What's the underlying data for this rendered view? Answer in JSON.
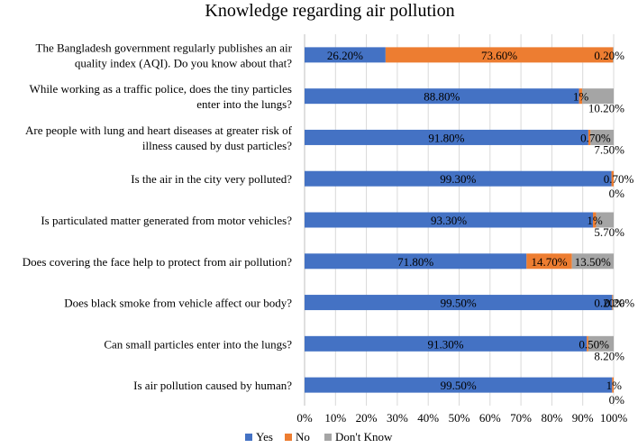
{
  "chart_data": {
    "type": "bar",
    "stacked": true,
    "orientation": "horizontal",
    "title": "Knowledge regarding air pollution",
    "xlim": [
      0,
      100
    ],
    "xticks": [
      "0%",
      "10%",
      "20%",
      "30%",
      "40%",
      "50%",
      "60%",
      "70%",
      "80%",
      "90%",
      "100%"
    ],
    "legend_position": "bottom",
    "categories": [
      {
        "lines": [
          "The Bangladesh government regularly publishes an air",
          "quality index (AQI). Do you know about that?"
        ]
      },
      {
        "lines": [
          "While working as a traffic police, does the tiny particles",
          "enter into the lungs?"
        ]
      },
      {
        "lines": [
          "Are people with lung and heart diseases at greater risk of",
          "illness caused by dust particles?"
        ]
      },
      {
        "lines": [
          "Is the air in the city very polluted?"
        ]
      },
      {
        "lines": [
          "Is particulated matter generated from motor vehicles?"
        ]
      },
      {
        "lines": [
          "Does covering the face help to protect from air pollution?"
        ]
      },
      {
        "lines": [
          "Does black smoke from vehicle affect our body?"
        ]
      },
      {
        "lines": [
          "Can small particles enter into the lungs?"
        ]
      },
      {
        "lines": [
          "Is air pollution caused by human?"
        ]
      }
    ],
    "series": [
      {
        "name": "Yes",
        "color": "#4472C4",
        "values": [
          26.2,
          88.8,
          91.8,
          99.3,
          93.3,
          71.8,
          99.5,
          91.3,
          99.5
        ],
        "labels": [
          "26.20%",
          "88.80%",
          "91.80%",
          "99.30%",
          "93.30%",
          "71.80%",
          "99.50%",
          "91.30%",
          "99.50%"
        ]
      },
      {
        "name": "No",
        "color": "#ED7D31",
        "values": [
          73.6,
          1,
          0.7,
          0.7,
          1,
          14.7,
          0.2,
          0.5,
          1
        ],
        "labels": [
          "73.60%",
          "1%",
          "0.70%",
          "0.70%",
          "1%",
          "14.70%",
          "0.20%",
          "0.50%",
          "1%"
        ]
      },
      {
        "name": "Don't Know",
        "color": "#A5A5A5",
        "values": [
          0.2,
          10.2,
          7.5,
          0,
          5.7,
          13.5,
          0.2,
          8.2,
          0
        ],
        "labels": [
          "0.20%",
          "10.20%",
          "7.50%",
          "0%",
          "5.70%",
          "13.50%",
          "0.20%",
          "8.20%",
          "0%"
        ]
      }
    ]
  }
}
